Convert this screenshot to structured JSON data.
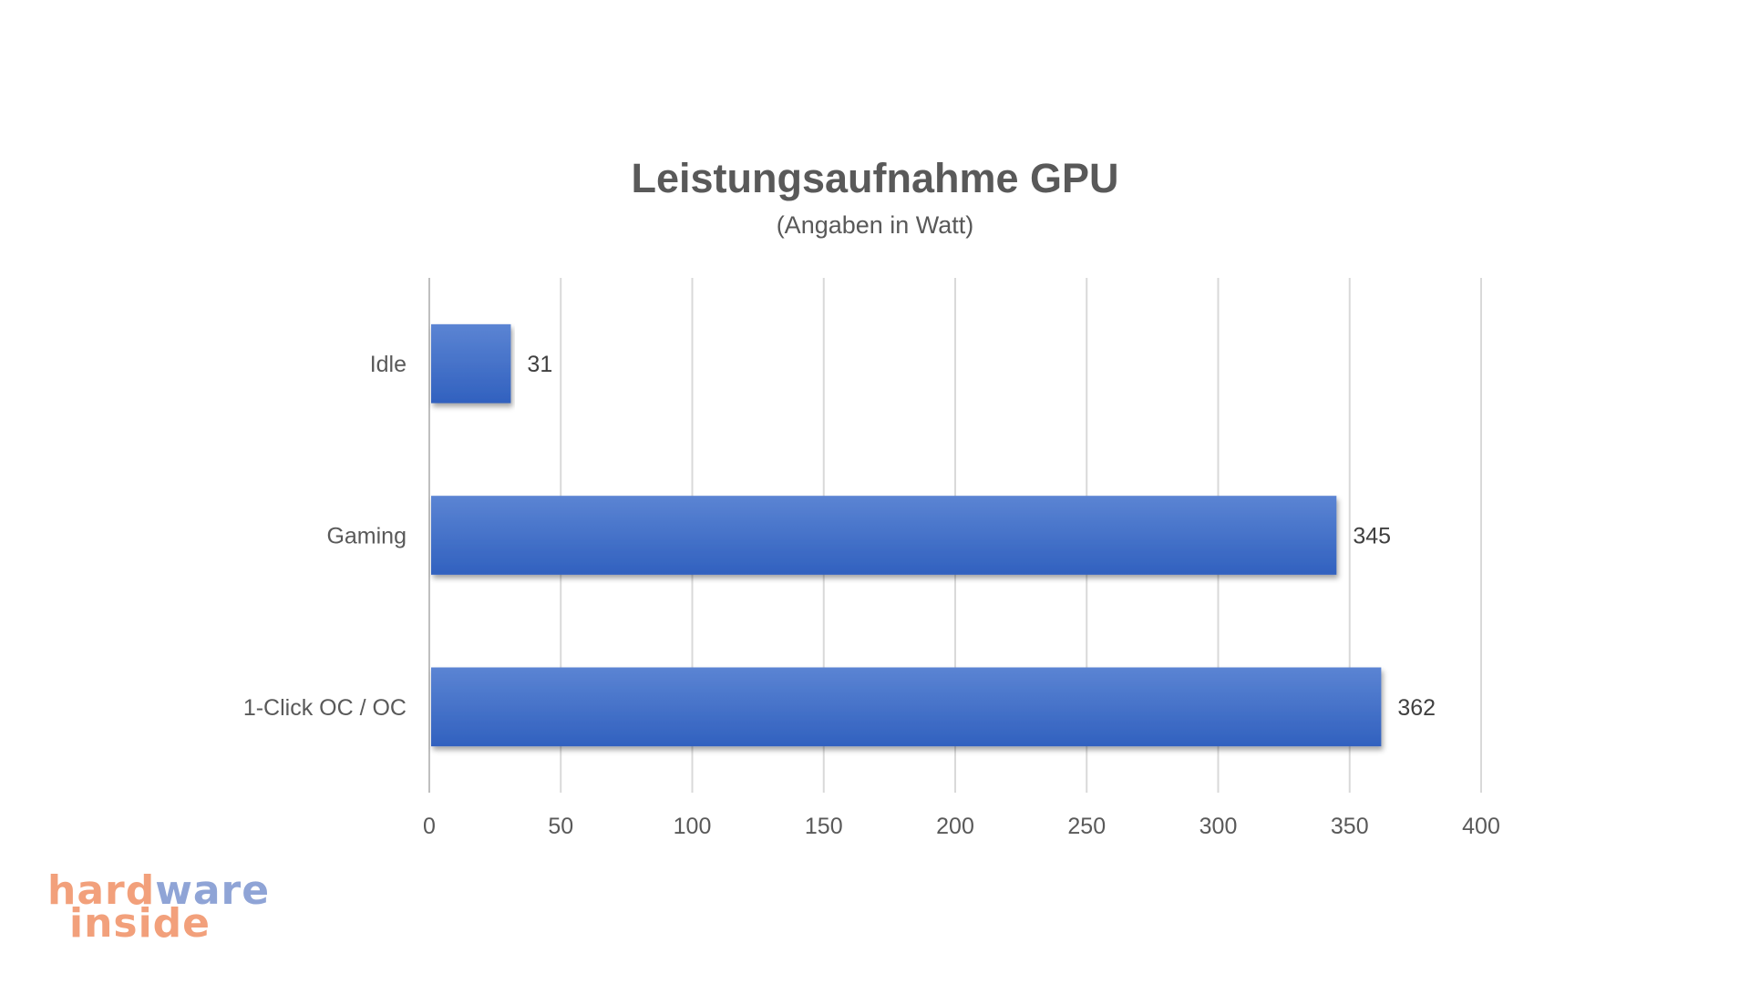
{
  "chart_data": {
    "type": "bar",
    "orientation": "horizontal",
    "title": "Leistungsaufnahme GPU",
    "subtitle": "(Angaben in Watt)",
    "categories": [
      "Idle",
      "Gaming",
      "1-Click OC / OC"
    ],
    "values": [
      31,
      345,
      362
    ],
    "data_labels": [
      "31",
      "345",
      "362"
    ],
    "xlim": [
      0,
      400
    ],
    "xticks": [
      0,
      50,
      100,
      150,
      200,
      250,
      300,
      350,
      400
    ],
    "xtick_labels": [
      "0",
      "50",
      "100",
      "150",
      "200",
      "250",
      "300",
      "350",
      "400"
    ],
    "xlabel": "",
    "ylabel": "",
    "grid": "vertical",
    "legend": "none",
    "bar_color": "#4472c4"
  },
  "logo": {
    "line1_part1": "hard",
    "line1_part2": "ware",
    "line2": "inside",
    "color_orange": "#f2a07b",
    "color_blue": "#8fa4d6"
  }
}
